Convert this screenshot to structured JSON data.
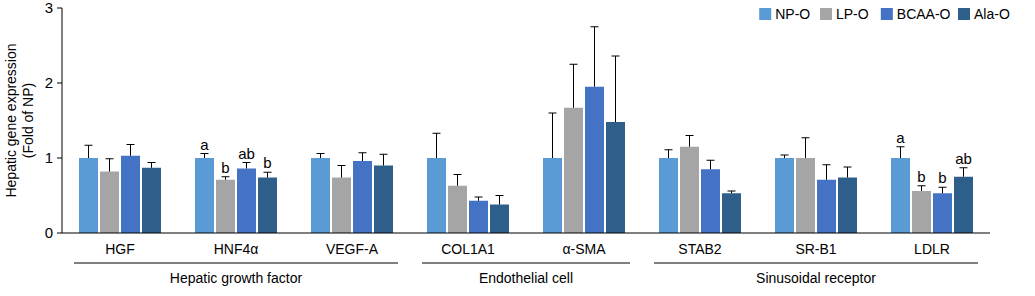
{
  "chart_data": {
    "type": "bar",
    "y_label": [
      "Hepatic gene expression",
      "(Fold of NP)"
    ],
    "categories": [
      "HGF",
      "HNF4α",
      "VEGF-A",
      "COL1A1",
      "α-SMA",
      "STAB2",
      "SR-B1",
      "LDLR"
    ],
    "groups": [
      {
        "label": "Hepatic growth factor",
        "members": [
          "HGF",
          "HNF4α",
          "VEGF-A"
        ]
      },
      {
        "label": "Endothelial cell",
        "members": [
          "COL1A1",
          "α-SMA"
        ]
      },
      {
        "label": "Sinusoidal receptor",
        "members": [
          "STAB2",
          "SR-B1",
          "LDLR"
        ]
      }
    ],
    "series": [
      {
        "name": "NP-O",
        "color": "#5b9bd5",
        "values": [
          1.0,
          1.0,
          1.0,
          1.0,
          1.0,
          1.0,
          1.0,
          1.0
        ],
        "errors": [
          0.17,
          0.06,
          0.06,
          0.33,
          0.6,
          0.11,
          0.04,
          0.15
        ],
        "letters": [
          null,
          "a",
          null,
          null,
          null,
          null,
          null,
          "a"
        ]
      },
      {
        "name": "LP-O",
        "color": "#a5a5a5",
        "values": [
          0.82,
          0.71,
          0.74,
          0.63,
          1.67,
          1.15,
          1.0,
          0.56
        ],
        "errors": [
          0.17,
          0.04,
          0.16,
          0.15,
          0.58,
          0.15,
          0.27,
          0.07
        ],
        "letters": [
          null,
          "b",
          null,
          null,
          null,
          null,
          null,
          "b"
        ]
      },
      {
        "name": "BCAA-O",
        "color": "#4472c4",
        "values": [
          1.03,
          0.86,
          0.96,
          0.43,
          1.95,
          0.85,
          0.71,
          0.53
        ],
        "errors": [
          0.15,
          0.08,
          0.11,
          0.05,
          0.8,
          0.12,
          0.2,
          0.08
        ],
        "letters": [
          null,
          "ab",
          null,
          null,
          null,
          null,
          null,
          "b"
        ]
      },
      {
        "name": "Ala-O",
        "color": "#2e5f8a",
        "values": [
          0.87,
          0.74,
          0.9,
          0.38,
          1.48,
          0.53,
          0.74,
          0.75
        ],
        "errors": [
          0.07,
          0.07,
          0.15,
          0.12,
          0.88,
          0.03,
          0.14,
          0.12
        ],
        "letters": [
          null,
          "b",
          null,
          null,
          null,
          null,
          null,
          "ab"
        ]
      }
    ],
    "ylim": [
      0,
      3
    ],
    "yticks": [
      0,
      1,
      2,
      3
    ],
    "grid": false,
    "legend": "upper right"
  }
}
